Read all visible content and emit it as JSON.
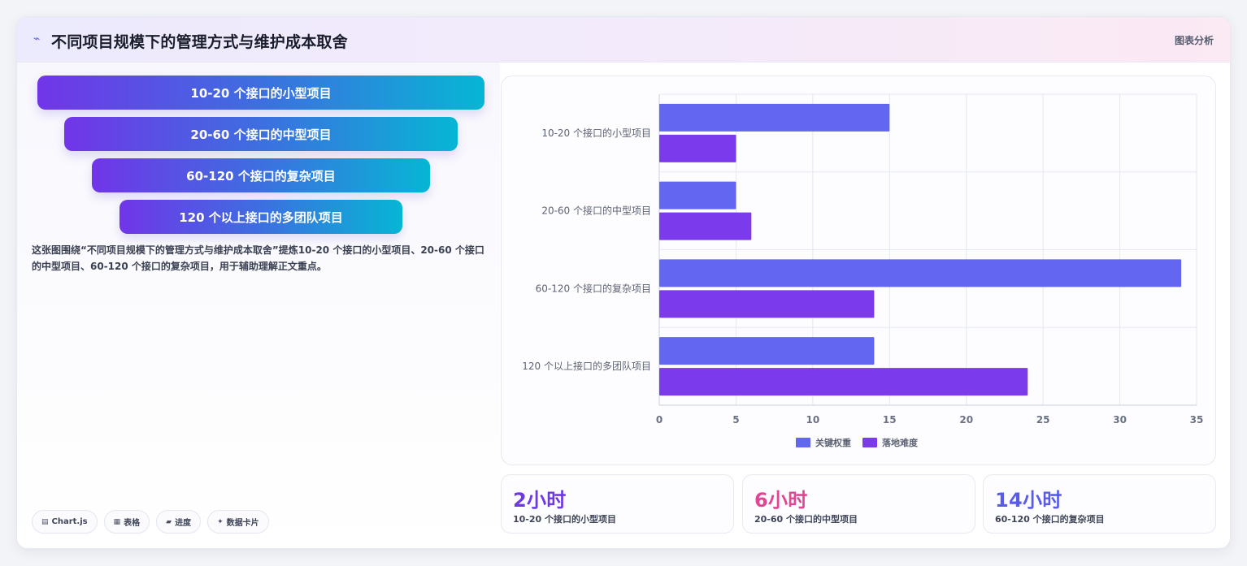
{
  "header": {
    "icon": "pulse-icon",
    "icon_glyph": "⌁",
    "title": "不同项目规模下的管理方式与维护成本取舍",
    "right_label": "图表分析"
  },
  "funnel": {
    "items": [
      "10-20 个接口的小型项目",
      "20-60 个接口的中型项目",
      "60-120 个接口的复杂项目",
      "120 个以上接口的多团队项目"
    ]
  },
  "description": "这张图围绕“不同项目规模下的管理方式与维护成本取舍”提炼10-20 个接口的小型项目、20-60 个接口的中型项目、60-120 个接口的复杂项目，用于辅助理解正文重点。",
  "chips": [
    {
      "icon": "chart-icon",
      "glyph": "▤",
      "label": "Chart.js"
    },
    {
      "icon": "table-icon",
      "glyph": "▦",
      "label": "表格"
    },
    {
      "icon": "progress-icon",
      "glyph": "▰",
      "label": "进度"
    },
    {
      "icon": "sparkle-icon",
      "glyph": "✦",
      "label": "数据卡片"
    }
  ],
  "chart_data": {
    "type": "bar",
    "orientation": "horizontal",
    "categories": [
      "10-20 个接口的小型项目",
      "20-60 个接口的中型项目",
      "60-120 个接口的复杂项目",
      "120 个以上接口的多团队项目"
    ],
    "series": [
      {
        "name": "关键权重",
        "color": "#6366f1",
        "values": [
          15,
          5,
          34,
          14
        ]
      },
      {
        "name": "落地难度",
        "color": "#7c3aed",
        "values": [
          5,
          6,
          14,
          24
        ]
      }
    ],
    "xlim": [
      0,
      35
    ],
    "xticks": [
      0,
      5,
      10,
      15,
      20,
      25,
      30,
      35
    ],
    "grid": true,
    "legend_position": "bottom"
  },
  "stats": [
    {
      "value": "2小时",
      "label": "10-20 个接口的小型项目",
      "color": "#6d3adf"
    },
    {
      "value": "6小时",
      "label": "20-60 个接口的中型项目",
      "color": "#e04694"
    },
    {
      "value": "14小时",
      "label": "60-120 个接口的复杂项目",
      "color": "#5b5ce6"
    }
  ]
}
